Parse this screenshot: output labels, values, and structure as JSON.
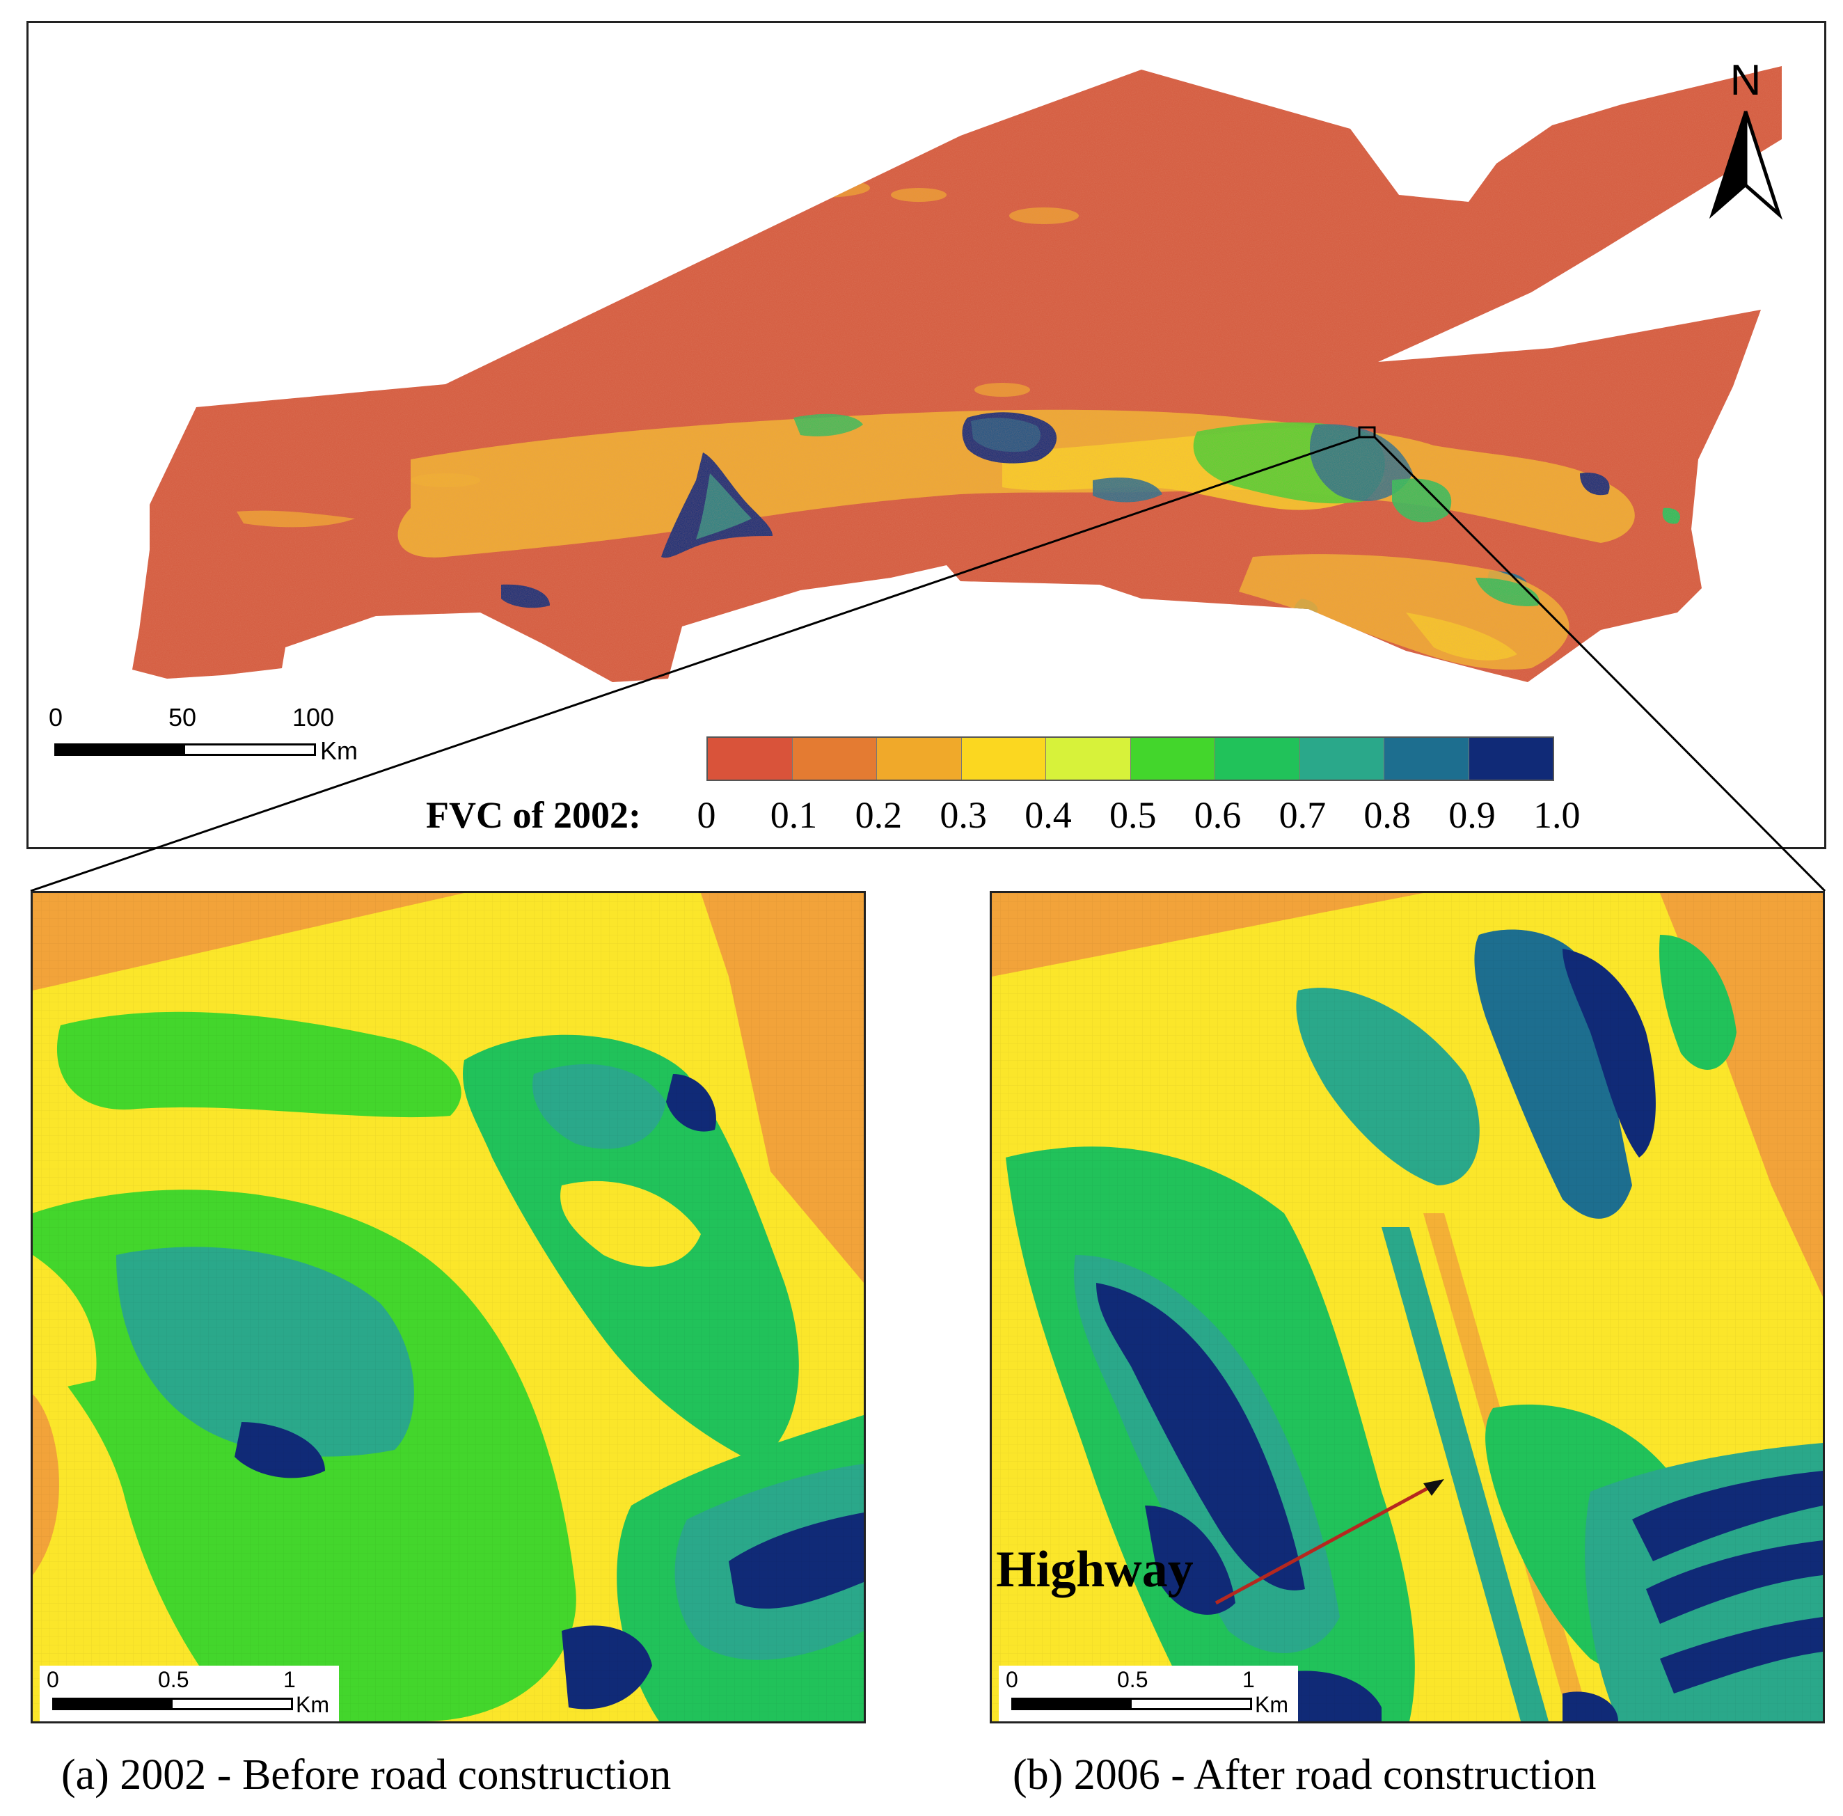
{
  "north_arrow": {
    "letter": "N"
  },
  "overview_scale": {
    "ticks": [
      "0",
      "50",
      "100"
    ],
    "unit": "Km"
  },
  "legend": {
    "title": "FVC of 2002:",
    "values": [
      "0",
      "0.1",
      "0.2",
      "0.3",
      "0.4",
      "0.5",
      "0.6",
      "0.7",
      "0.8",
      "0.9",
      "1.0"
    ],
    "colors": [
      "#d9533a",
      "#e47b32",
      "#f0a92a",
      "#fbd720",
      "#d7f23a",
      "#43d62c",
      "#21c25a",
      "#2aa88a",
      "#1d6e8f",
      "#102a77"
    ]
  },
  "panel_a": {
    "scale": {
      "ticks": [
        "0",
        "0.5",
        "1"
      ],
      "unit": "Km"
    },
    "caption": "(a) 2002 - Before road construction"
  },
  "panel_b": {
    "scale": {
      "ticks": [
        "0",
        "0.5",
        "1"
      ],
      "unit": "Km"
    },
    "caption": "(b) 2006 - After road construction",
    "annotation": "Highway"
  }
}
